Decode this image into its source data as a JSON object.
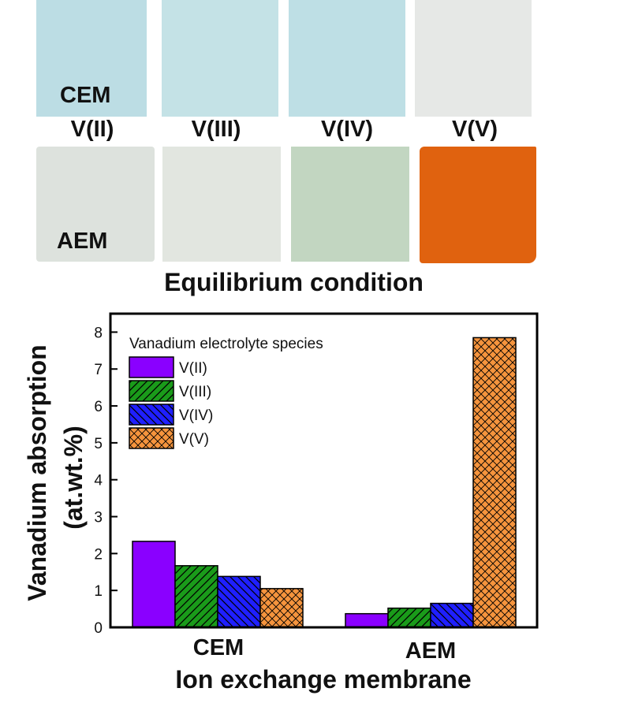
{
  "figure": {
    "cem_label": "CEM",
    "aem_label": "AEM",
    "species_labels": [
      "V(II)",
      "V(III)",
      "V(IV)",
      "V(V)"
    ],
    "caption": "Equilibrium condition",
    "cem_photo_colors": [
      "#bcdde4",
      "#c4e2e6",
      "#bedfe5",
      "#e6e8e6"
    ],
    "aem_photo_colors": [
      "#dde2dd",
      "#e2e6e0",
      "#c2d6c1",
      "#e0620f"
    ]
  },
  "chart_data": {
    "type": "bar",
    "categories": [
      "CEM",
      "AEM"
    ],
    "series": [
      {
        "name": "V(II)",
        "values": [
          2.33,
          0.37
        ],
        "color": "#8a00ff",
        "pattern": "solid"
      },
      {
        "name": "V(III)",
        "values": [
          1.67,
          0.52
        ],
        "color": "#1a9b1a",
        "pattern": "diag-up"
      },
      {
        "name": "V(IV)",
        "values": [
          1.38,
          0.65
        ],
        "color": "#1f1fff",
        "pattern": "diag-down"
      },
      {
        "name": "V(V)",
        "values": [
          1.05,
          7.85
        ],
        "color": "#f5943d",
        "pattern": "cross"
      }
    ],
    "title": "",
    "xlabel": "Ion exchange membrane",
    "ylabel": "Vanadium absorption",
    "ylabel_unit": "(at.wt.%)",
    "legend_title": "Vanadium electrolyte species",
    "legend_position": "top-left",
    "ylim": [
      0,
      8.5
    ],
    "yticks": [
      "0",
      "1",
      "2",
      "3",
      "4",
      "5",
      "6",
      "7",
      "8"
    ],
    "grid": false
  }
}
